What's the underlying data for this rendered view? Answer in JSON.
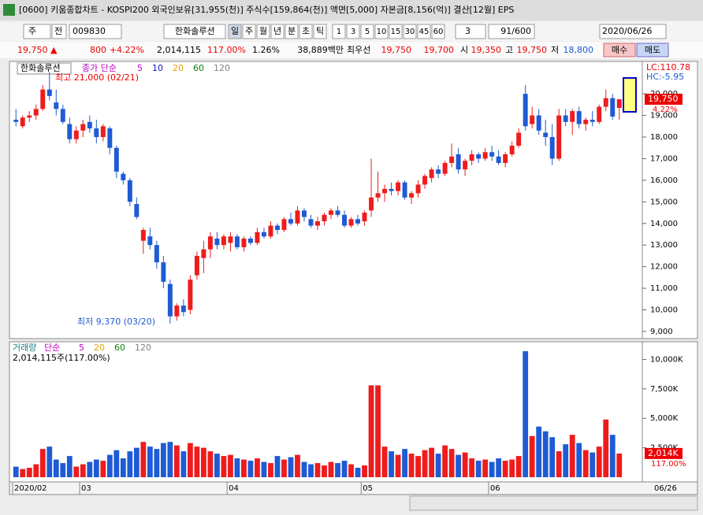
{
  "window": {
    "title": "[0600] 키움종합차트 - KOSPI200 외국인보유[31,955(천)] 주식수[159,864(천)] 액면[5,000] 자본금[8,156(억)] 결산[12월] EPS"
  },
  "toolbar": {
    "mode": [
      "주",
      "전"
    ],
    "code": "009830",
    "name": "한화솔루션",
    "periods": [
      "일",
      "주",
      "월",
      "년",
      "분",
      "초",
      "틱"
    ],
    "intervals": [
      "1",
      "3",
      "5",
      "10",
      "15",
      "30",
      "45",
      "60"
    ],
    "count_select": "3",
    "range": "91/600",
    "date": "2020/06/26"
  },
  "quote": {
    "price": "19,750 ▲",
    "change": "800",
    "change_pct": "+4.22%",
    "volume": "2,014,115",
    "volume_ratio": "117.00%",
    "turnover": "1.26%",
    "amount": "38,889백만",
    "best_label": "최우선",
    "ask": "19,750",
    "bid": "19,700",
    "open_label": "시",
    "open": "19,350",
    "high_label": "고",
    "high": "19,750",
    "low_label": "저",
    "low": "18,800",
    "buy": "매수",
    "sell": "매도"
  },
  "chart_data": [
    {
      "type": "candlestick",
      "name": "한화솔루션",
      "legend_label": "종가 단순",
      "ma_periods": [
        5,
        10,
        20,
        60,
        120
      ],
      "ma_colors": [
        "#c000c0",
        "#1010c0",
        "#e8a000",
        "#108010",
        "#808080"
      ],
      "lc": "LC:110.78",
      "hc": "HC:-5.95",
      "annotations": [
        "최고 21,000 (02/21)",
        "최저 9,370 (03/20)"
      ],
      "last_price_label": "19,750",
      "last_pct_label": "4.22%",
      "up_color": "#ee1c1c",
      "down_color": "#1e5bd4",
      "ylim": [
        8670,
        21500
      ],
      "yticks": [
        {
          "value": 9000,
          "label": "9,000"
        },
        {
          "value": 10000,
          "label": "10,000"
        },
        {
          "value": 11000,
          "label": "11,000"
        },
        {
          "value": 12000,
          "label": "12,000"
        },
        {
          "value": 13000,
          "label": "13,000"
        },
        {
          "value": 14000,
          "label": "14,000"
        },
        {
          "value": 15000,
          "label": "15,000"
        },
        {
          "value": 16000,
          "label": "16,000"
        },
        {
          "value": 17000,
          "label": "17,000"
        },
        {
          "value": 18000,
          "label": "18,000"
        },
        {
          "value": 19000,
          "label": "19,000"
        },
        {
          "value": 20000,
          "label": "20,000"
        }
      ],
      "candles": [
        [
          18800,
          19300,
          18500,
          18700
        ],
        [
          18500,
          19000,
          18400,
          18900
        ],
        [
          18900,
          19200,
          18700,
          19000
        ],
        [
          19000,
          19500,
          18800,
          19300
        ],
        [
          19300,
          20400,
          19200,
          20200
        ],
        [
          20200,
          21000,
          19700,
          19900
        ],
        [
          19600,
          20200,
          19000,
          19300
        ],
        [
          19300,
          19500,
          18600,
          18700
        ],
        [
          18600,
          18900,
          17700,
          17900
        ],
        [
          17900,
          18500,
          17700,
          18300
        ],
        [
          18300,
          18800,
          18000,
          18600
        ],
        [
          18700,
          19000,
          18200,
          18400
        ],
        [
          18400,
          18800,
          17700,
          18000
        ],
        [
          18000,
          18600,
          17800,
          18500
        ],
        [
          18400,
          18500,
          17200,
          17500
        ],
        [
          17500,
          17600,
          16100,
          16400
        ],
        [
          16300,
          16400,
          15800,
          16000
        ],
        [
          16000,
          16100,
          14800,
          15000
        ],
        [
          14900,
          15200,
          14200,
          14300
        ],
        [
          13200,
          13800,
          12600,
          13700
        ],
        [
          13400,
          13800,
          12800,
          13000
        ],
        [
          13000,
          13200,
          11900,
          12200
        ],
        [
          12200,
          12500,
          11000,
          11300
        ],
        [
          11200,
          11400,
          9370,
          9700
        ],
        [
          9700,
          10300,
          9500,
          10200
        ],
        [
          10200,
          10500,
          9700,
          9900
        ],
        [
          10000,
          11600,
          9800,
          11400
        ],
        [
          11600,
          12700,
          11400,
          12500
        ],
        [
          12400,
          13200,
          11700,
          12800
        ],
        [
          12800,
          13600,
          12400,
          13400
        ],
        [
          13300,
          13600,
          12800,
          13000
        ],
        [
          13000,
          13500,
          12800,
          13400
        ],
        [
          13100,
          13600,
          12700,
          13400
        ],
        [
          13400,
          13500,
          12800,
          12900
        ],
        [
          12900,
          13400,
          12700,
          13300
        ],
        [
          13300,
          13400,
          13000,
          13100
        ],
        [
          13100,
          13800,
          13000,
          13600
        ],
        [
          13600,
          13800,
          13300,
          13400
        ],
        [
          13400,
          14100,
          13300,
          13900
        ],
        [
          13900,
          14000,
          13500,
          13700
        ],
        [
          13700,
          14300,
          13600,
          14200
        ],
        [
          14200,
          14500,
          13900,
          14000
        ],
        [
          14000,
          14800,
          13900,
          14600
        ],
        [
          14600,
          14700,
          14100,
          14300
        ],
        [
          14200,
          14400,
          13800,
          13900
        ],
        [
          13900,
          14300,
          13700,
          14100
        ],
        [
          14100,
          14500,
          13900,
          14400
        ],
        [
          14400,
          14700,
          14200,
          14600
        ],
        [
          14600,
          14800,
          14300,
          14400
        ],
        [
          14400,
          14600,
          13800,
          13900
        ],
        [
          13900,
          14300,
          13800,
          14200
        ],
        [
          14200,
          14400,
          13900,
          14000
        ],
        [
          14100,
          14600,
          13900,
          14500
        ],
        [
          14600,
          17000,
          14300,
          15200
        ],
        [
          15200,
          16400,
          15000,
          15400
        ],
        [
          15400,
          15800,
          15000,
          15600
        ],
        [
          15600,
          15900,
          15300,
          15500
        ],
        [
          15500,
          16000,
          15300,
          15900
        ],
        [
          15900,
          16000,
          15100,
          15200
        ],
        [
          15200,
          15500,
          14900,
          15400
        ],
        [
          15400,
          16000,
          15200,
          15800
        ],
        [
          15800,
          16300,
          15600,
          16200
        ],
        [
          16100,
          16600,
          15900,
          16500
        ],
        [
          16500,
          16700,
          16100,
          16300
        ],
        [
          16300,
          16900,
          16200,
          16800
        ],
        [
          16800,
          17700,
          16600,
          17100
        ],
        [
          17200,
          17500,
          16300,
          16500
        ],
        [
          16500,
          17000,
          16200,
          16900
        ],
        [
          16900,
          17400,
          16700,
          17200
        ],
        [
          17200,
          17300,
          16800,
          17000
        ],
        [
          17000,
          17500,
          16900,
          17300
        ],
        [
          17300,
          17600,
          16900,
          17100
        ],
        [
          17100,
          17400,
          16700,
          16800
        ],
        [
          16800,
          17300,
          16600,
          17200
        ],
        [
          17200,
          17800,
          17100,
          17600
        ],
        [
          17600,
          18400,
          17500,
          18200
        ],
        [
          20000,
          20400,
          18300,
          18500
        ],
        [
          18600,
          19400,
          18400,
          19000
        ],
        [
          19000,
          19300,
          18100,
          18300
        ],
        [
          18200,
          18800,
          17600,
          18000
        ],
        [
          18000,
          18600,
          16700,
          17000
        ],
        [
          17000,
          19300,
          16900,
          19000
        ],
        [
          19000,
          19300,
          18500,
          18700
        ],
        [
          18700,
          19300,
          18100,
          19200
        ],
        [
          19200,
          19400,
          18400,
          18600
        ],
        [
          18600,
          18900,
          18300,
          18800
        ],
        [
          18800,
          19200,
          18500,
          18700
        ],
        [
          18700,
          19500,
          18600,
          19400
        ],
        [
          19400,
          20200,
          19200,
          19800
        ],
        [
          19800,
          20000,
          18800,
          18950
        ],
        [
          19350,
          19750,
          18800,
          19750
        ]
      ]
    },
    {
      "type": "volume",
      "legend_label": "거래량",
      "ma_label": "단순",
      "ma_periods": [
        5,
        20,
        60,
        120
      ],
      "ma_colors": [
        "#c000c0",
        "#e8a000",
        "#108010",
        "#808080"
      ],
      "summary": "2,014,115주(117.00%)",
      "last_label": "2,014K",
      "last_pct_label": "117.00%",
      "last_date": "06/26",
      "ylim": [
        -400,
        11500
      ],
      "yticks": [
        {
          "value": 2500,
          "label": "2,500K"
        },
        {
          "value": 5000,
          "label": "5,000K"
        },
        {
          "value": 7500,
          "label": "7,500K"
        },
        {
          "value": 10000,
          "label": "10,000K"
        }
      ],
      "values": [
        900,
        700,
        800,
        1100,
        2400,
        2600,
        1500,
        1200,
        1800,
        900,
        1100,
        1300,
        1500,
        1400,
        1900,
        2300,
        1600,
        2200,
        2500,
        3000,
        2600,
        2400,
        2900,
        3000,
        2700,
        2200,
        2900,
        2600,
        2500,
        2200,
        2000,
        1800,
        1900,
        1600,
        1500,
        1400,
        1600,
        1300,
        1200,
        1800,
        1500,
        1700,
        1900,
        1300,
        1100,
        1200,
        1000,
        1300,
        1200,
        1400,
        1100,
        800,
        1000,
        7800,
        7800,
        2600,
        2200,
        1900,
        2400,
        2000,
        1800,
        2300,
        2500,
        2000,
        2700,
        2400,
        1900,
        2100,
        1600,
        1400,
        1500,
        1300,
        1600,
        1400,
        1500,
        1800,
        10700,
        3500,
        4300,
        3900,
        3400,
        2200,
        2800,
        3600,
        2900,
        2300,
        2100,
        2600,
        4900,
        3600,
        2014.115
      ],
      "categories": [
        "2020/02",
        null,
        null,
        null,
        null,
        null,
        null,
        null,
        null,
        null,
        "03",
        null,
        null,
        null,
        null,
        null,
        null,
        null,
        null,
        null,
        null,
        null,
        null,
        null,
        null,
        null,
        null,
        null,
        null,
        null,
        null,
        null,
        "04",
        null,
        null,
        null,
        null,
        null,
        null,
        null,
        null,
        null,
        null,
        null,
        null,
        null,
        null,
        null,
        null,
        null,
        null,
        null,
        "05",
        null,
        null,
        null,
        null,
        null,
        null,
        null,
        null,
        null,
        null,
        null,
        null,
        null,
        null,
        null,
        null,
        null,
        null,
        "06",
        null,
        null,
        null,
        null,
        null,
        null,
        null,
        null,
        null,
        null,
        null,
        null,
        null,
        null,
        null,
        null,
        null,
        null,
        null
      ]
    }
  ]
}
